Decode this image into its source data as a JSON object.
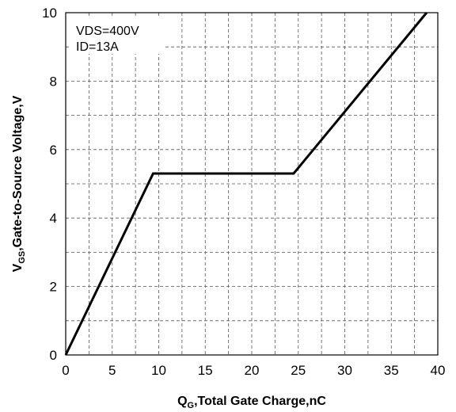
{
  "chart_data": {
    "type": "line",
    "title": "",
    "xlabel": {
      "main": "Q",
      "sub": "G",
      "rest": ",Total Gate Charge,nC"
    },
    "ylabel": {
      "main": "V",
      "sub": "GS",
      "rest": ",Gate-to-Source Voltage,V"
    },
    "xlim": [
      0,
      40
    ],
    "ylim": [
      0,
      10
    ],
    "xticks": [
      0,
      5,
      10,
      15,
      20,
      25,
      30,
      35,
      40
    ],
    "yticks": [
      0,
      2,
      4,
      6,
      8,
      10
    ],
    "x_minor_grid_step": 2.5,
    "y_minor_grid_step": 1,
    "grid": "dashed",
    "annotations": [
      "VDS=400V",
      "ID=13A"
    ],
    "series": [
      {
        "color": "#000000",
        "x": [
          0,
          9.4,
          24.5,
          38.8
        ],
        "y": [
          0,
          5.3,
          5.3,
          10
        ]
      }
    ]
  }
}
